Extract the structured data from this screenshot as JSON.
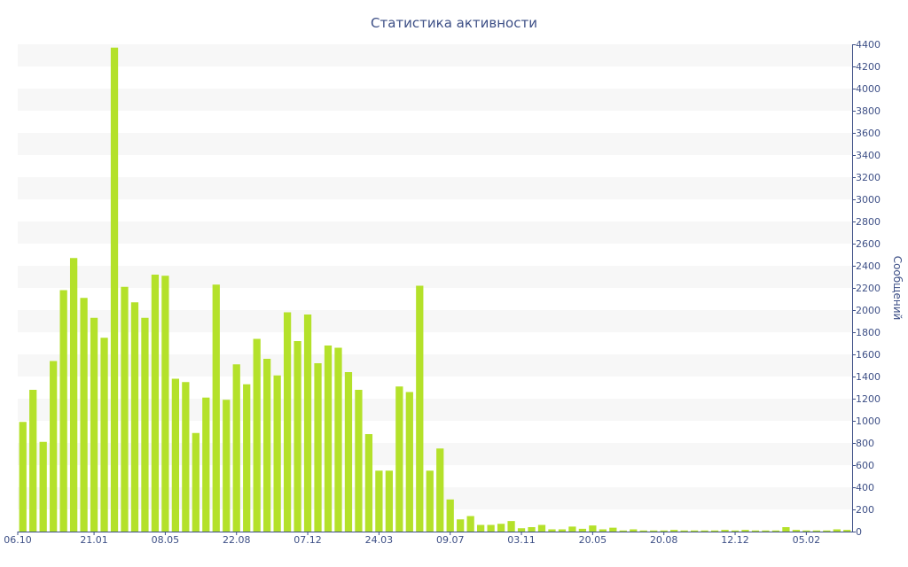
{
  "chart_data": {
    "type": "bar",
    "title": "Статистика активности",
    "xlabel": "",
    "ylabel": "Сообщений",
    "ylim": [
      0,
      4400
    ],
    "y_ticks": [
      0,
      200,
      400,
      600,
      800,
      1000,
      1200,
      1400,
      1600,
      1800,
      2000,
      2200,
      2400,
      2600,
      2800,
      3000,
      3200,
      3400,
      3600,
      3800,
      4000,
      4200,
      4400
    ],
    "y_axis_side": "right",
    "grid": "horizontal alternating bands",
    "x_tick_labels": [
      {
        "index": 0,
        "label": "06.10"
      },
      {
        "index": 7,
        "label": "21.01"
      },
      {
        "index": 14,
        "label": "08.05"
      },
      {
        "index": 21,
        "label": "22.08"
      },
      {
        "index": 28,
        "label": "07.12"
      },
      {
        "index": 35,
        "label": "24.03"
      },
      {
        "index": 42,
        "label": "09.07"
      },
      {
        "index": 49,
        "label": "03.11"
      },
      {
        "index": 56,
        "label": "20.05"
      },
      {
        "index": 63,
        "label": "20.08"
      },
      {
        "index": 70,
        "label": "12.12"
      },
      {
        "index": 77,
        "label": "05.02"
      }
    ],
    "values": [
      990,
      1280,
      810,
      1540,
      2180,
      2470,
      2110,
      1930,
      1750,
      4370,
      2210,
      2070,
      1930,
      2320,
      2310,
      1380,
      1350,
      890,
      1210,
      2230,
      1190,
      1510,
      1330,
      1740,
      1560,
      1410,
      1980,
      1720,
      1960,
      1520,
      1680,
      1660,
      1440,
      1280,
      880,
      550,
      550,
      1310,
      1260,
      2220,
      550,
      750,
      290,
      110,
      140,
      60,
      60,
      70,
      95,
      30,
      40,
      60,
      20,
      20,
      45,
      25,
      55,
      20,
      35,
      10,
      20,
      10,
      10,
      10,
      15,
      10,
      10,
      10,
      10,
      15,
      10,
      15,
      10,
      10,
      10,
      40,
      15,
      10,
      10,
      10,
      20,
      15
    ],
    "colors": {
      "bar": "#b4e12a",
      "axis_text": "#3d4f86",
      "band": "#f7f7f7",
      "axis_line": "#3d4f86"
    }
  }
}
